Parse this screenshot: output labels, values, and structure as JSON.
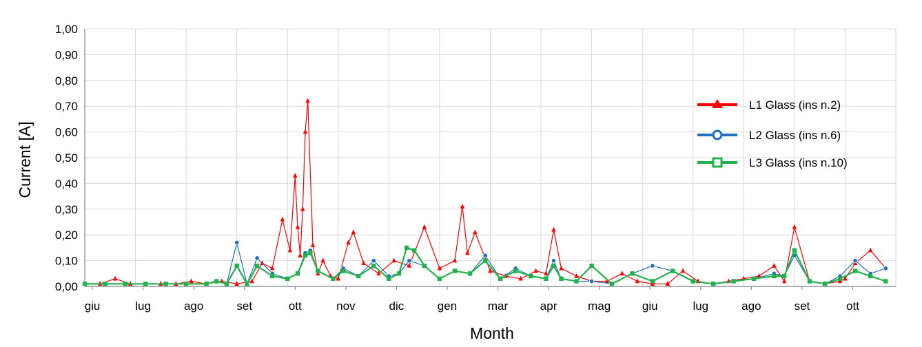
{
  "chart_data": {
    "type": "line",
    "title": "",
    "xlabel": "Month",
    "ylabel": "Current  [A]",
    "ylim": [
      0,
      1
    ],
    "yticks": [
      "0,00",
      "0,10",
      "0,20",
      "0,30",
      "0,40",
      "0,50",
      "0,60",
      "0,70",
      "0,80",
      "0,90",
      "1,00"
    ],
    "x_ticks": [
      "giu",
      "lug",
      "ago",
      "set",
      "ott",
      "nov",
      "dic",
      "gen",
      "mar",
      "apr",
      "mag",
      "giu",
      "lug",
      "ago",
      "set",
      "ott"
    ],
    "grid": "vertical and horizontal",
    "legend_position": "right",
    "series": [
      {
        "name": "L1 Glass (ins n.2)",
        "color": "#ff0000",
        "marker": "triangle",
        "x_months": [
          0.0,
          0.3,
          0.6,
          0.9,
          1.2,
          1.5,
          1.8,
          2.1,
          2.4,
          2.7,
          3.0,
          3.3,
          3.5,
          3.7,
          3.9,
          4.05,
          4.15,
          4.2,
          4.25,
          4.3,
          4.35,
          4.4,
          4.5,
          4.6,
          4.7,
          4.85,
          5.0,
          5.2,
          5.3,
          5.5,
          5.8,
          6.1,
          6.4,
          6.7,
          7.0,
          7.3,
          7.45,
          7.55,
          7.7,
          8.0,
          8.3,
          8.6,
          8.9,
          9.1,
          9.25,
          9.4,
          9.7,
          10.0,
          10.3,
          10.6,
          10.9,
          11.2,
          11.5,
          11.8,
          12.1,
          12.4,
          12.7,
          13.0,
          13.3,
          13.6,
          13.8,
          14.0,
          14.3,
          14.6,
          14.9,
          15.0,
          15.2,
          15.5,
          15.8
        ],
        "values": [
          0.01,
          0.01,
          0.03,
          0.01,
          0.01,
          0.01,
          0.01,
          0.02,
          0.01,
          0.02,
          0.01,
          0.02,
          0.09,
          0.07,
          0.26,
          0.14,
          0.43,
          0.23,
          0.12,
          0.3,
          0.6,
          0.72,
          0.16,
          0.05,
          0.1,
          0.04,
          0.03,
          0.17,
          0.21,
          0.09,
          0.05,
          0.1,
          0.08,
          0.23,
          0.07,
          0.1,
          0.31,
          0.13,
          0.21,
          0.06,
          0.04,
          0.03,
          0.06,
          0.05,
          0.22,
          0.07,
          0.04,
          0.02,
          0.02,
          0.05,
          0.02,
          0.01,
          0.01,
          0.06,
          0.02,
          0.01,
          0.02,
          0.03,
          0.04,
          0.08,
          0.02,
          0.23,
          0.02,
          0.01,
          0.02,
          0.03,
          0.09,
          0.14,
          0.07
        ],
        "note": "values estimated from the plotted line"
      },
      {
        "name": "L2 Glass (ins n.6)",
        "color": "#1f6fbf",
        "marker": "circle",
        "x_months": [
          0.0,
          0.4,
          0.8,
          1.2,
          1.6,
          2.0,
          2.4,
          2.6,
          2.8,
          3.0,
          3.2,
          3.4,
          3.7,
          4.0,
          4.2,
          4.35,
          4.45,
          4.6,
          4.9,
          5.1,
          5.4,
          5.7,
          6.0,
          6.2,
          6.4,
          6.7,
          7.0,
          7.3,
          7.6,
          7.9,
          8.2,
          8.5,
          8.8,
          9.1,
          9.25,
          9.4,
          9.7,
          10.0,
          10.4,
          10.8,
          11.2,
          11.6,
          12.0,
          12.4,
          12.8,
          13.2,
          13.6,
          13.8,
          14.0,
          14.3,
          14.6,
          14.9,
          15.2,
          15.5,
          15.8
        ],
        "values": [
          0.01,
          0.01,
          0.01,
          0.01,
          0.01,
          0.01,
          0.01,
          0.02,
          0.01,
          0.17,
          0.01,
          0.11,
          0.05,
          0.03,
          0.05,
          0.13,
          0.14,
          0.06,
          0.03,
          0.07,
          0.04,
          0.1,
          0.04,
          0.05,
          0.1,
          0.08,
          0.03,
          0.06,
          0.05,
          0.12,
          0.03,
          0.07,
          0.04,
          0.03,
          0.1,
          0.03,
          0.02,
          0.02,
          0.01,
          0.05,
          0.08,
          0.06,
          0.02,
          0.01,
          0.02,
          0.03,
          0.05,
          0.04,
          0.12,
          0.02,
          0.01,
          0.04,
          0.1,
          0.05,
          0.07
        ],
        "note": "values estimated from the plotted line"
      },
      {
        "name": "L3 Glass (ins n.10)",
        "color": "#22b14c",
        "marker": "square",
        "x_months": [
          0.0,
          0.4,
          0.8,
          1.2,
          1.6,
          2.0,
          2.4,
          2.6,
          2.8,
          3.0,
          3.2,
          3.4,
          3.7,
          4.0,
          4.2,
          4.35,
          4.45,
          4.6,
          4.9,
          5.1,
          5.4,
          5.7,
          6.0,
          6.2,
          6.35,
          6.5,
          6.7,
          7.0,
          7.3,
          7.6,
          7.9,
          8.2,
          8.5,
          8.8,
          9.1,
          9.25,
          9.4,
          9.7,
          10.0,
          10.4,
          10.8,
          11.2,
          11.6,
          12.0,
          12.4,
          12.8,
          13.2,
          13.6,
          13.8,
          14.0,
          14.3,
          14.6,
          14.9,
          15.2,
          15.5,
          15.8
        ],
        "values": [
          0.01,
          0.01,
          0.01,
          0.01,
          0.01,
          0.01,
          0.01,
          0.02,
          0.01,
          0.08,
          0.01,
          0.08,
          0.04,
          0.03,
          0.05,
          0.12,
          0.13,
          0.06,
          0.03,
          0.06,
          0.04,
          0.08,
          0.03,
          0.05,
          0.15,
          0.14,
          0.08,
          0.03,
          0.06,
          0.05,
          0.1,
          0.03,
          0.06,
          0.04,
          0.03,
          0.08,
          0.03,
          0.02,
          0.08,
          0.01,
          0.05,
          0.02,
          0.06,
          0.02,
          0.01,
          0.02,
          0.03,
          0.04,
          0.04,
          0.14,
          0.02,
          0.01,
          0.03,
          0.06,
          0.04,
          0.02
        ],
        "note": "values estimated from the plotted line"
      }
    ]
  }
}
